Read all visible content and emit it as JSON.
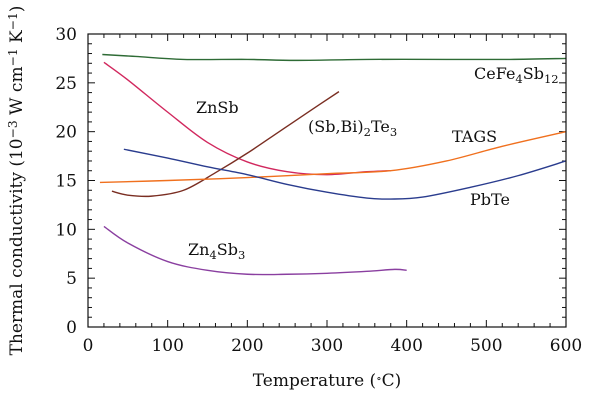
{
  "chart_data": {
    "type": "line",
    "xlabel_parts": [
      "Temperature (",
      "∘",
      "C)"
    ],
    "ylabel_parts": [
      {
        "t": "Thermal conductivity (10",
        "s": "n"
      },
      {
        "t": "−3",
        "s": "sup"
      },
      {
        "t": " W cm",
        "s": "n"
      },
      {
        "t": "−1",
        "s": "sup"
      },
      {
        "t": " K",
        "s": "n"
      },
      {
        "t": "−1",
        "s": "sup"
      },
      {
        "t": ")",
        "s": "n"
      }
    ],
    "xlim": [
      0,
      600
    ],
    "ylim": [
      0,
      30
    ],
    "xticks": [
      0,
      100,
      200,
      300,
      400,
      500,
      600
    ],
    "yticks": [
      0,
      5,
      10,
      15,
      20,
      25,
      30
    ],
    "yminor_step": 1,
    "xminor_step": 20,
    "grid": false,
    "series": [
      {
        "name_parts": [
          {
            "t": "CeFe",
            "s": "n"
          },
          {
            "t": "4",
            "s": "sub"
          },
          {
            "t": "Sb",
            "s": "n"
          },
          {
            "t": "12",
            "s": "sub"
          }
        ],
        "color": "#2e6b35",
        "x": [
          18,
          60,
          120,
          200,
          260,
          350,
          450,
          530,
          600
        ],
        "y": [
          27.9,
          27.7,
          27.4,
          27.4,
          27.3,
          27.4,
          27.4,
          27.4,
          27.5
        ]
      },
      {
        "name_parts": [
          {
            "t": "ZnSb",
            "s": "n"
          }
        ],
        "color": "#d1285e",
        "x": [
          20,
          50,
          100,
          150,
          200,
          250,
          300,
          350,
          380
        ],
        "y": [
          27.1,
          25.3,
          22.0,
          18.9,
          16.9,
          15.9,
          15.6,
          15.9,
          16.0
        ]
      },
      {
        "name_parts": [
          {
            "t": "(Sb,Bi)",
            "s": "n"
          },
          {
            "t": "2",
            "s": "sub"
          },
          {
            "t": "Te",
            "s": "n"
          },
          {
            "t": "3",
            "s": "sub"
          }
        ],
        "color": "#7a2e22",
        "x": [
          30,
          50,
          80,
          120,
          160,
          200,
          240,
          280,
          315
        ],
        "y": [
          13.9,
          13.5,
          13.4,
          14.0,
          15.8,
          17.8,
          20.0,
          22.2,
          24.1
        ]
      },
      {
        "name_parts": [
          {
            "t": "TAGS",
            "s": "n"
          }
        ],
        "color": "#f0701e",
        "x": [
          15,
          100,
          200,
          300,
          380,
          450,
          520,
          600
        ],
        "y": [
          14.8,
          15.0,
          15.3,
          15.7,
          16.0,
          17.0,
          18.5,
          20.0
        ]
      },
      {
        "name_parts": [
          {
            "t": "PbTe",
            "s": "n"
          }
        ],
        "color": "#2a3c8e",
        "x": [
          45,
          100,
          150,
          200,
          250,
          300,
          350,
          380,
          420,
          480,
          540,
          600
        ],
        "y": [
          18.2,
          17.3,
          16.4,
          15.6,
          14.6,
          13.8,
          13.2,
          13.1,
          13.3,
          14.3,
          15.5,
          17.0
        ]
      },
      {
        "name_parts": [
          {
            "t": "Zn",
            "s": "n"
          },
          {
            "t": "4",
            "s": "sub"
          },
          {
            "t": "Sb",
            "s": "n"
          },
          {
            "t": "3",
            "s": "sub"
          }
        ],
        "color": "#8a3fa0",
        "x": [
          20,
          50,
          100,
          150,
          200,
          250,
          300,
          350,
          385,
          400
        ],
        "y": [
          10.3,
          8.6,
          6.7,
          5.8,
          5.4,
          5.4,
          5.5,
          5.7,
          5.9,
          5.8
        ]
      }
    ]
  }
}
